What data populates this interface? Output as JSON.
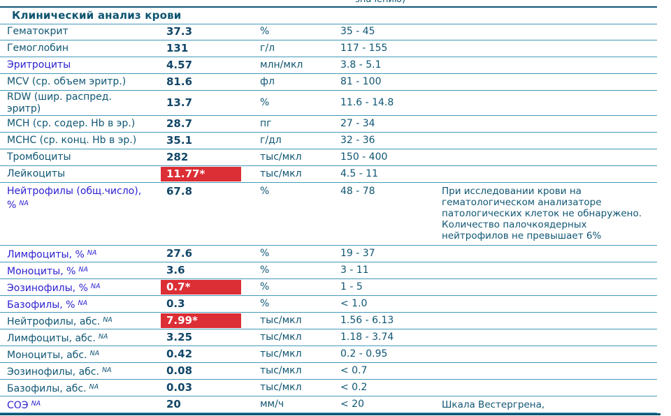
{
  "top_partial_text": "значению)",
  "section": {
    "title": "Клинический анализ крови"
  },
  "colors": {
    "accent_teal": "#0F5673",
    "link_blue": "#2A1FD0",
    "flag_red": "#DC2E35",
    "row_border": "#4298B8"
  },
  "table": {
    "rows": [
      {
        "name": "Гематокрит",
        "sup": "",
        "value": "37.3",
        "flagged": false,
        "unit": "%",
        "range": "35 - 45",
        "comment": "",
        "link": false,
        "tall": false
      },
      {
        "name": "Гемоглобин",
        "sup": "",
        "value": "131",
        "flagged": false,
        "unit": "г/л",
        "range": "117 - 155",
        "comment": "",
        "link": false,
        "tall": false
      },
      {
        "name": "Эритроциты",
        "sup": "",
        "value": "4.57",
        "flagged": false,
        "unit": "млн/мкл",
        "range": "3.8 - 5.1",
        "comment": "",
        "link": true,
        "tall": false
      },
      {
        "name": "MCV (ср. объем эритр.)",
        "sup": "",
        "value": "81.6",
        "flagged": false,
        "unit": "фл",
        "range": "81 - 100",
        "comment": "",
        "link": false,
        "tall": false
      },
      {
        "name": "RDW (шир. распред. эритр)",
        "sup": "",
        "value": "13.7",
        "flagged": false,
        "unit": "%",
        "range": "11.6 - 14.8",
        "comment": "",
        "link": false,
        "tall": false
      },
      {
        "name": "MCH (ср. содер. Hb в эр.)",
        "sup": "",
        "value": "28.7",
        "flagged": false,
        "unit": "пг",
        "range": "27 - 34",
        "comment": "",
        "link": false,
        "tall": false
      },
      {
        "name": "MCHC (ср. конц. Hb в эр.)",
        "sup": "",
        "value": "35.1",
        "flagged": false,
        "unit": "г/дл",
        "range": "32 - 36",
        "comment": "",
        "link": false,
        "tall": false
      },
      {
        "name": "Тромбоциты",
        "sup": "",
        "value": "282",
        "flagged": false,
        "unit": "тыс/мкл",
        "range": "150 - 400",
        "comment": "",
        "link": false,
        "tall": false
      },
      {
        "name": "Лейкоциты",
        "sup": "",
        "value": "11.77*",
        "flagged": true,
        "unit": "тыс/мкл",
        "range": "4.5 - 11",
        "comment": "",
        "link": false,
        "tall": false
      },
      {
        "name": "Нейтрофилы (общ.число), %",
        "sup": "NA",
        "value": "67.8",
        "flagged": false,
        "unit": "%",
        "range": "48 - 78",
        "comment": "При исследовании крови на гематологическом анализаторе патологических клеток не обнаружено. Количество палочкоядерных нейтрофилов не превышает 6%",
        "link": true,
        "tall": true
      },
      {
        "name": "Лимфоциты, %",
        "sup": "NA",
        "value": "27.6",
        "flagged": false,
        "unit": "%",
        "range": "19 - 37",
        "comment": "",
        "link": true,
        "tall": false
      },
      {
        "name": "Моноциты, %",
        "sup": "NA",
        "value": "3.6",
        "flagged": false,
        "unit": "%",
        "range": "3 - 11",
        "comment": "",
        "link": true,
        "tall": false
      },
      {
        "name": "Эозинофилы, %",
        "sup": "NA",
        "value": "0.7*",
        "flagged": true,
        "unit": "%",
        "range": "1 - 5",
        "comment": "",
        "link": true,
        "tall": false
      },
      {
        "name": "Базофилы, %",
        "sup": "NA",
        "value": "0.3",
        "flagged": false,
        "unit": "%",
        "range": "< 1.0",
        "comment": "",
        "link": true,
        "tall": false
      },
      {
        "name": "Нейтрофилы, абс.",
        "sup": "NA",
        "value": "7.99*",
        "flagged": true,
        "unit": "тыс/мкл",
        "range": "1.56 - 6.13",
        "comment": "",
        "link": false,
        "tall": false
      },
      {
        "name": "Лимфоциты, абс.",
        "sup": "NA",
        "value": "3.25",
        "flagged": false,
        "unit": "тыс/мкл",
        "range": "1.18 - 3.74",
        "comment": "",
        "link": false,
        "tall": false
      },
      {
        "name": "Моноциты, абс.",
        "sup": "NA",
        "value": "0.42",
        "flagged": false,
        "unit": "тыс/мкл",
        "range": "0.2 - 0.95",
        "comment": "",
        "link": false,
        "tall": false
      },
      {
        "name": "Эозинофилы, абс.",
        "sup": "NA",
        "value": "0.08",
        "flagged": false,
        "unit": "тыс/мкл",
        "range": "< 0.7",
        "comment": "",
        "link": false,
        "tall": false
      },
      {
        "name": "Базофилы, абс.",
        "sup": "NA",
        "value": "0.03",
        "flagged": false,
        "unit": "тыс/мкл",
        "range": "< 0.2",
        "comment": "",
        "link": false,
        "tall": false
      },
      {
        "name": "СОЭ",
        "sup": "NA",
        "value": "20",
        "flagged": false,
        "unit": "мм/ч",
        "range": "< 20",
        "comment": "Шкала Вестергрена,",
        "link": true,
        "tall": false
      }
    ]
  }
}
